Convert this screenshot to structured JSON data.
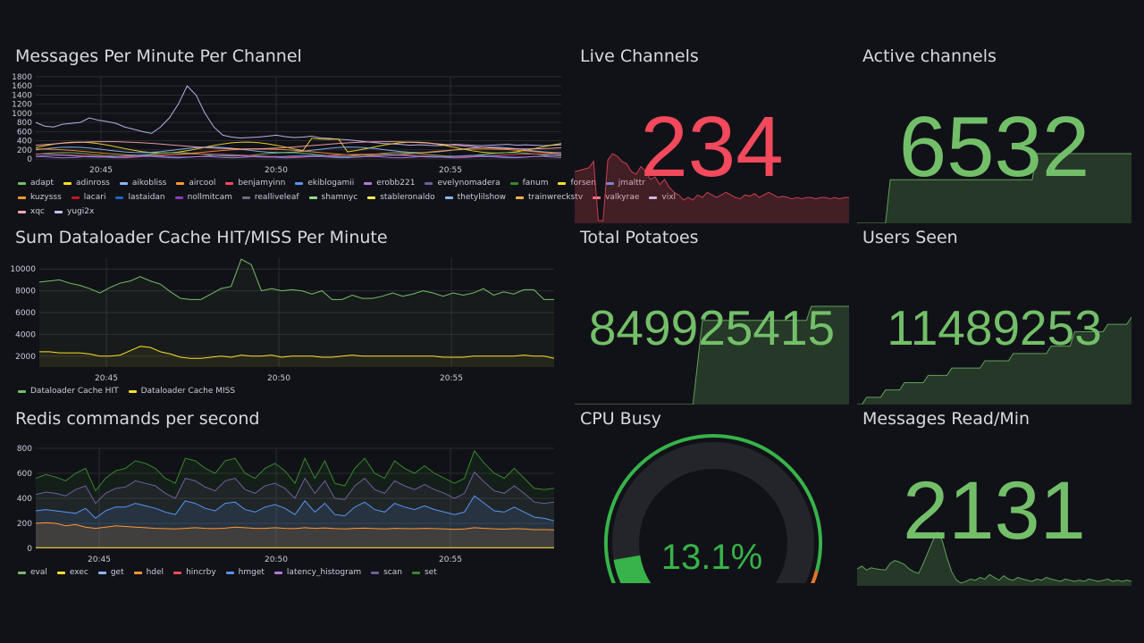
{
  "colors": {
    "background": "#111217",
    "red": "#f2495c",
    "green": "#73bf69",
    "yellow": "#fade2a"
  },
  "messages_panel": {
    "title": "Messages Per Minute Per Channel",
    "legend": [
      {
        "name": "adapt",
        "color": "#73bf69"
      },
      {
        "name": "adinross",
        "color": "#fade2a"
      },
      {
        "name": "aikobliss",
        "color": "#8ab8ff"
      },
      {
        "name": "aircool",
        "color": "#ff9830"
      },
      {
        "name": "benjamyinn",
        "color": "#f2495c"
      },
      {
        "name": "ekiblogamii",
        "color": "#5794f2"
      },
      {
        "name": "erobb221",
        "color": "#b877d9"
      },
      {
        "name": "evelynomadera",
        "color": "#705da0"
      },
      {
        "name": "fanum",
        "color": "#37872d"
      },
      {
        "name": "forsen",
        "color": "#fade2a"
      },
      {
        "name": "jmalttr",
        "color": "#5794f2"
      },
      {
        "name": "kuzysss",
        "color": "#ff9830"
      },
      {
        "name": "lacari",
        "color": "#c4162a"
      },
      {
        "name": "lastaidan",
        "color": "#1f60c4"
      },
      {
        "name": "nollmitcam",
        "color": "#8f3bb8"
      },
      {
        "name": "realliveleaf",
        "color": "#6d6d85"
      },
      {
        "name": "shamnyc",
        "color": "#96d98d"
      },
      {
        "name": "stableronaldo",
        "color": "#ffee52"
      },
      {
        "name": "thetylilshow",
        "color": "#8ab8ff"
      },
      {
        "name": "trainwreckstv",
        "color": "#ffb357"
      },
      {
        "name": "valkyrae",
        "color": "#ff7383"
      },
      {
        "name": "vixl",
        "color": "#c0d8ff"
      },
      {
        "name": "xqc",
        "color": "#ffa6b0"
      },
      {
        "name": "yugi2x",
        "color": "#cabfff"
      }
    ],
    "chart_data": {
      "type": "line",
      "yticks": [
        "1800",
        "1600",
        "1400",
        "1200",
        "1000",
        "800",
        "600",
        "400",
        "200",
        "0"
      ],
      "xticks": [
        "20:45",
        "20:50",
        "20:55"
      ],
      "ylim": [
        0,
        1800
      ]
    }
  },
  "cache_panel": {
    "title": "Sum Dataloader Cache HIT/MISS Per Minute",
    "legend": [
      {
        "name": "Dataloader Cache HIT",
        "color": "#73bf69"
      },
      {
        "name": "Dataloader Cache MISS",
        "color": "#fade2a"
      }
    ],
    "chart_data": {
      "type": "line",
      "yticks": [
        "10000",
        "8000",
        "6000",
        "4000",
        "2000"
      ],
      "xticks": [
        "20:45",
        "20:50",
        "20:55"
      ],
      "ylim": [
        1000,
        11000
      ],
      "series": [
        {
          "name": "Dataloader Cache HIT",
          "values": [
            8800,
            8900,
            9000,
            8700,
            8500,
            8200,
            7800,
            8300,
            8700,
            8900,
            9300,
            8900,
            8600,
            7900,
            7300,
            7200,
            7200,
            7700,
            8200,
            8400,
            10900,
            10400,
            8000,
            8200,
            8000,
            8100,
            8000,
            7700,
            8000,
            7200,
            7200,
            7600,
            7300,
            7300,
            7500,
            7800,
            7500,
            7700,
            8000,
            7800,
            7500,
            7800,
            7600,
            7800,
            8200,
            7600,
            7900,
            7700,
            8100,
            8100,
            7200,
            7200
          ]
        },
        {
          "name": "Dataloader Cache MISS",
          "values": [
            2400,
            2400,
            2300,
            2300,
            2300,
            2200,
            2000,
            2000,
            2100,
            2500,
            2900,
            2800,
            2400,
            2200,
            1900,
            1800,
            1800,
            1900,
            2000,
            1900,
            2100,
            2000,
            2000,
            2100,
            1900,
            2000,
            2000,
            2000,
            1900,
            1900,
            2000,
            2100,
            2000,
            2000,
            2000,
            2000,
            2000,
            2000,
            2000,
            2000,
            1900,
            1900,
            1900,
            2000,
            2000,
            2000,
            2000,
            2000,
            2100,
            2000,
            2000,
            1800
          ]
        }
      ]
    }
  },
  "redis_panel": {
    "title": "Redis commands per second",
    "legend": [
      {
        "name": "eval",
        "color": "#73bf69"
      },
      {
        "name": "exec",
        "color": "#fade2a"
      },
      {
        "name": "get",
        "color": "#8ab8ff"
      },
      {
        "name": "hdel",
        "color": "#ff9830"
      },
      {
        "name": "hincrby",
        "color": "#f2495c"
      },
      {
        "name": "hmget",
        "color": "#5794f2"
      },
      {
        "name": "latency_histogram",
        "color": "#b877d9"
      },
      {
        "name": "scan",
        "color": "#705da0"
      },
      {
        "name": "set",
        "color": "#37872d"
      }
    ],
    "chart_data": {
      "type": "area",
      "yticks": [
        "800",
        "600",
        "400",
        "200",
        "0"
      ],
      "xticks": [
        "20:45",
        "20:50",
        "20:55"
      ],
      "ylim": [
        0,
        800
      ],
      "series": [
        {
          "name": "set",
          "values": [
            560,
            590,
            570,
            540,
            600,
            640,
            460,
            560,
            620,
            640,
            700,
            680,
            640,
            560,
            520,
            720,
            700,
            640,
            600,
            700,
            720,
            600,
            560,
            640,
            680,
            620,
            520,
            720,
            560,
            700,
            520,
            500,
            640,
            720,
            600,
            560,
            700,
            640,
            600,
            660,
            600,
            560,
            520,
            560,
            780,
            680,
            600,
            560,
            640,
            560,
            480,
            470,
            480
          ]
        },
        {
          "name": "scan",
          "values": [
            430,
            450,
            440,
            420,
            470,
            500,
            360,
            440,
            480,
            490,
            540,
            520,
            500,
            440,
            400,
            560,
            540,
            490,
            460,
            540,
            560,
            470,
            440,
            500,
            520,
            480,
            400,
            560,
            440,
            540,
            400,
            390,
            500,
            560,
            470,
            440,
            540,
            500,
            470,
            510,
            470,
            440,
            400,
            440,
            610,
            530,
            460,
            440,
            500,
            440,
            370,
            360,
            370
          ]
        },
        {
          "name": "hmget",
          "values": [
            300,
            310,
            300,
            290,
            280,
            320,
            240,
            300,
            330,
            330,
            360,
            340,
            320,
            290,
            270,
            380,
            360,
            320,
            300,
            360,
            370,
            310,
            290,
            330,
            350,
            320,
            270,
            380,
            290,
            360,
            270,
            260,
            330,
            370,
            310,
            290,
            360,
            330,
            310,
            340,
            310,
            290,
            270,
            290,
            420,
            360,
            300,
            290,
            330,
            290,
            250,
            240,
            220
          ]
        },
        {
          "name": "hdel",
          "values": [
            200,
            205,
            200,
            180,
            190,
            170,
            160,
            170,
            180,
            175,
            170,
            165,
            160,
            158,
            155,
            160,
            165,
            160,
            158,
            162,
            170,
            165,
            160,
            160,
            165,
            160,
            158,
            165,
            160,
            163,
            158,
            155,
            160,
            162,
            158,
            155,
            160,
            158,
            157,
            160,
            158,
            155,
            152,
            155,
            165,
            160,
            156,
            154,
            158,
            155,
            150,
            150,
            148
          ]
        },
        {
          "name": "exec",
          "values": [
            5,
            5,
            5,
            5,
            5,
            5,
            5,
            5,
            5,
            5,
            5,
            5,
            5,
            5,
            5,
            5,
            5,
            5,
            5,
            5,
            5,
            5,
            5,
            5,
            5,
            5,
            5,
            5,
            5,
            5,
            5,
            5,
            5,
            5,
            5,
            5,
            5,
            5,
            5,
            5,
            5,
            5,
            5,
            5,
            5,
            5,
            5,
            5,
            5,
            5,
            5,
            5,
            5
          ]
        }
      ]
    }
  },
  "live_channels": {
    "title": "Live Channels",
    "value": "234",
    "color": "#f2495c",
    "spark": [
      200,
      205,
      210,
      215,
      240,
      10,
      10,
      245,
      270,
      260,
      240,
      230,
      200,
      190,
      220,
      200,
      170,
      180,
      150,
      170,
      140,
      120,
      110,
      90,
      100,
      90,
      110,
      100,
      120,
      110,
      100,
      110,
      120,
      110,
      100,
      95,
      110,
      105,
      115,
      100,
      110,
      120,
      110,
      100,
      105,
      100,
      95,
      100,
      95,
      100,
      100,
      95,
      100,
      100,
      95,
      100,
      95,
      100,
      100
    ]
  },
  "active_channels": {
    "title": "Active channels",
    "value": "6532",
    "color": "#73bf69",
    "spark": [
      0,
      0,
      0,
      0,
      0,
      0,
      0,
      5,
      5,
      5,
      5,
      5,
      5,
      5,
      5,
      5,
      5,
      5,
      5,
      5,
      5,
      5,
      5,
      5,
      5,
      5,
      5,
      5,
      5,
      5,
      5,
      5,
      5,
      5,
      5,
      5,
      5,
      5,
      8,
      8,
      8,
      8,
      8,
      8,
      8,
      8,
      8,
      8,
      8,
      8,
      8,
      8,
      8,
      8,
      8,
      8,
      8,
      8,
      8
    ]
  },
  "total_potatoes": {
    "title": "Total Potatoes",
    "value": "849925415",
    "color": "#73bf69",
    "spark": [
      0,
      0,
      0,
      0,
      0,
      0,
      0,
      0,
      0,
      0,
      0,
      0,
      0,
      0,
      0,
      0,
      0,
      0,
      0,
      0,
      0,
      0,
      0,
      0,
      0,
      0,
      3,
      6,
      6,
      6,
      6,
      6,
      6,
      6,
      6,
      6,
      6,
      6,
      6,
      6,
      6,
      6,
      6,
      6,
      6,
      6,
      6,
      6,
      6,
      6,
      7,
      7,
      7,
      7,
      7,
      7,
      7,
      7,
      7
    ]
  },
  "users_seen": {
    "title": "Users Seen",
    "value": "11489253",
    "color": "#73bf69",
    "spark": [
      0,
      0,
      1,
      1,
      1,
      1,
      2,
      2,
      2,
      2,
      3,
      3,
      3,
      3,
      3,
      4,
      4,
      4,
      4,
      4,
      5,
      5,
      5,
      5,
      5,
      5,
      5,
      6,
      6,
      6,
      6,
      6,
      6,
      7,
      7,
      7,
      7,
      7,
      7,
      7,
      7,
      8,
      8,
      8,
      8,
      8,
      10,
      10,
      10,
      10,
      10,
      10,
      10,
      11,
      11,
      11,
      11,
      11,
      12
    ]
  },
  "cpu_busy": {
    "title": "CPU Busy",
    "value": "13.1%",
    "percent": 13.1,
    "color": "#37b34a"
  },
  "messages_read": {
    "title": "Messages Read/Min",
    "value": "2131",
    "color": "#73bf69",
    "spark": [
      30,
      35,
      28,
      32,
      30,
      29,
      28,
      40,
      45,
      42,
      38,
      30,
      25,
      22,
      40,
      60,
      80,
      95,
      80,
      50,
      25,
      10,
      5,
      8,
      12,
      10,
      15,
      12,
      20,
      15,
      10,
      18,
      12,
      10,
      15,
      12,
      10,
      8,
      12,
      10,
      15,
      12,
      10,
      8,
      12,
      10,
      8,
      10,
      8,
      12,
      10,
      8,
      10,
      12,
      8,
      10,
      8,
      10,
      8
    ]
  }
}
